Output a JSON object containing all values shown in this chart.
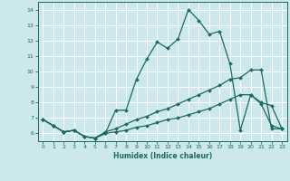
{
  "xlabel": "Humidex (Indice chaleur)",
  "bg_color": "#cce8ec",
  "grid_color": "#ffffff",
  "line_color": "#1a6b5a",
  "xlim": [
    -0.5,
    23.5
  ],
  "ylim": [
    5.5,
    14.5
  ],
  "xticks": [
    0,
    1,
    2,
    3,
    4,
    5,
    6,
    7,
    8,
    9,
    10,
    11,
    12,
    13,
    14,
    15,
    16,
    17,
    18,
    19,
    20,
    21,
    22,
    23
  ],
  "yticks": [
    6,
    7,
    8,
    9,
    10,
    11,
    12,
    13,
    14
  ],
  "series": [
    {
      "x": [
        0,
        1,
        2,
        3,
        4,
        5,
        6,
        7,
        8,
        9,
        10,
        11,
        12,
        13,
        14,
        15,
        16,
        17,
        18,
        19,
        20,
        21,
        22,
        23
      ],
      "y": [
        6.9,
        6.5,
        6.1,
        6.2,
        5.8,
        5.7,
        6.0,
        7.5,
        7.5,
        9.5,
        10.8,
        11.9,
        11.5,
        12.1,
        14.0,
        13.3,
        12.4,
        12.6,
        10.5,
        6.2,
        8.5,
        8.0,
        7.8,
        6.3
      ]
    },
    {
      "x": [
        0,
        1,
        2,
        3,
        4,
        5,
        6,
        7,
        8,
        9,
        10,
        11,
        12,
        13,
        14,
        15,
        16,
        17,
        18,
        19,
        20,
        21,
        22,
        23
      ],
      "y": [
        6.9,
        6.5,
        6.1,
        6.2,
        5.8,
        5.7,
        6.1,
        6.3,
        6.6,
        6.9,
        7.1,
        7.4,
        7.6,
        7.9,
        8.2,
        8.5,
        8.8,
        9.1,
        9.5,
        9.6,
        10.1,
        10.1,
        6.3,
        6.3
      ]
    },
    {
      "x": [
        0,
        1,
        2,
        3,
        4,
        5,
        6,
        7,
        8,
        9,
        10,
        11,
        12,
        13,
        14,
        15,
        16,
        17,
        18,
        19,
        20,
        21,
        22,
        23
      ],
      "y": [
        6.9,
        6.5,
        6.1,
        6.2,
        5.8,
        5.7,
        6.0,
        6.1,
        6.2,
        6.4,
        6.5,
        6.7,
        6.9,
        7.0,
        7.2,
        7.4,
        7.6,
        7.9,
        8.2,
        8.5,
        8.5,
        7.9,
        6.5,
        6.3
      ]
    }
  ],
  "markersize": 2.0,
  "linewidth": 0.9
}
